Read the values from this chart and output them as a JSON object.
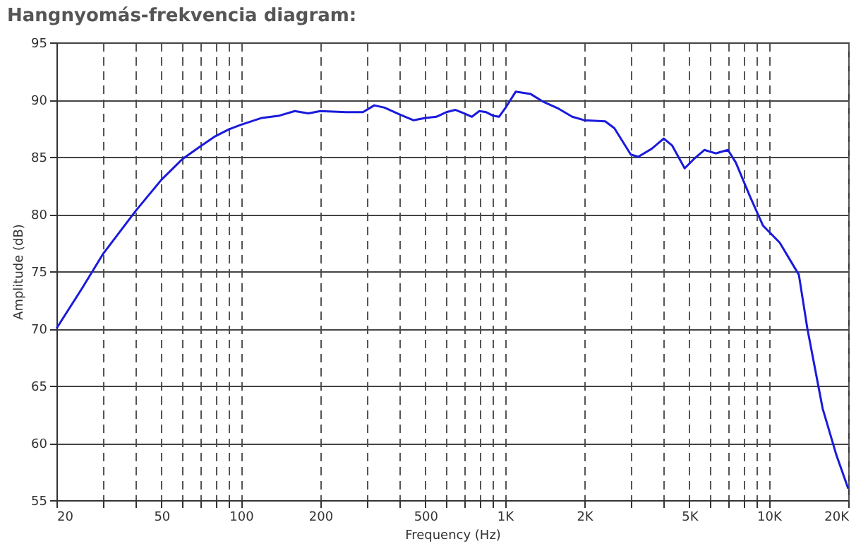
{
  "chart_data": {
    "type": "line",
    "title": "Hangnyomás-frekvencia diagram:",
    "xlabel": "Frequency (Hz)",
    "ylabel": "Amplitude (dB)",
    "x": [
      20,
      25,
      30,
      40,
      50,
      60,
      70,
      80,
      90,
      100,
      120,
      140,
      160,
      180,
      200,
      250,
      290,
      320,
      350,
      400,
      450,
      500,
      550,
      600,
      650,
      700,
      750,
      800,
      850,
      900,
      950,
      1000,
      1100,
      1250,
      1400,
      1600,
      1800,
      2000,
      2400,
      2600,
      3000,
      3200,
      3600,
      4000,
      4300,
      4800,
      5200,
      5700,
      6300,
      7000,
      7500,
      8500,
      9500,
      11000,
      13000,
      14000,
      16000,
      18000,
      20000
    ],
    "series": [
      {
        "color": "#1a1adc",
        "values": [
          70,
          73.5,
          76.5,
          80.3,
          83,
          84.8,
          85.9,
          86.8,
          87.4,
          87.8,
          88.4,
          88.6,
          89.0,
          88.8,
          89.0,
          88.9,
          88.9,
          89.5,
          89.3,
          88.7,
          88.2,
          88.4,
          88.5,
          88.9,
          89.1,
          88.8,
          88.5,
          89.0,
          88.9,
          88.6,
          88.5,
          89.2,
          90.7,
          90.5,
          89.8,
          89.2,
          88.5,
          88.2,
          88.1,
          87.5,
          85.2,
          85.0,
          85.7,
          86.6,
          86.0,
          84.0,
          84.8,
          85.6,
          85.3,
          85.6,
          84.5,
          81.5,
          79.0,
          77.5,
          74.7,
          70,
          63,
          59,
          56
        ]
      }
    ],
    "log": "x",
    "xlim": [
      20,
      20000
    ],
    "ylim": [
      55,
      95
    ],
    "yticks": [
      55,
      60,
      65,
      70,
      75,
      80,
      85,
      90,
      95
    ],
    "xticks": [
      20,
      {
        "value": 30,
        "label": null
      },
      {
        "value": 40,
        "label": null
      },
      50,
      {
        "value": 60,
        "label": null
      },
      {
        "value": 70,
        "label": null
      },
      {
        "value": 80,
        "label": null
      },
      {
        "value": 90,
        "label": null
      },
      100,
      200,
      {
        "value": 300,
        "label": null
      },
      {
        "value": 400,
        "label": null
      },
      500,
      {
        "value": 600,
        "label": null
      },
      {
        "value": 700,
        "label": null
      },
      {
        "value": 800,
        "label": null
      },
      {
        "value": 900,
        "label": null
      },
      {
        "value": 1000,
        "label": "1K"
      },
      {
        "value": 2000,
        "label": "2K"
      },
      {
        "value": 3000,
        "label": null
      },
      {
        "value": 4000,
        "label": null
      },
      {
        "value": 5000,
        "label": "5K"
      },
      {
        "value": 6000,
        "label": null
      },
      {
        "value": 7000,
        "label": null
      },
      {
        "value": 8000,
        "label": null
      },
      {
        "value": 9000,
        "label": null
      },
      {
        "value": 10000,
        "label": "10K"
      },
      {
        "value": 20000,
        "label": "20K"
      }
    ],
    "grid": true,
    "line_style": "solid",
    "marker": "none"
  }
}
